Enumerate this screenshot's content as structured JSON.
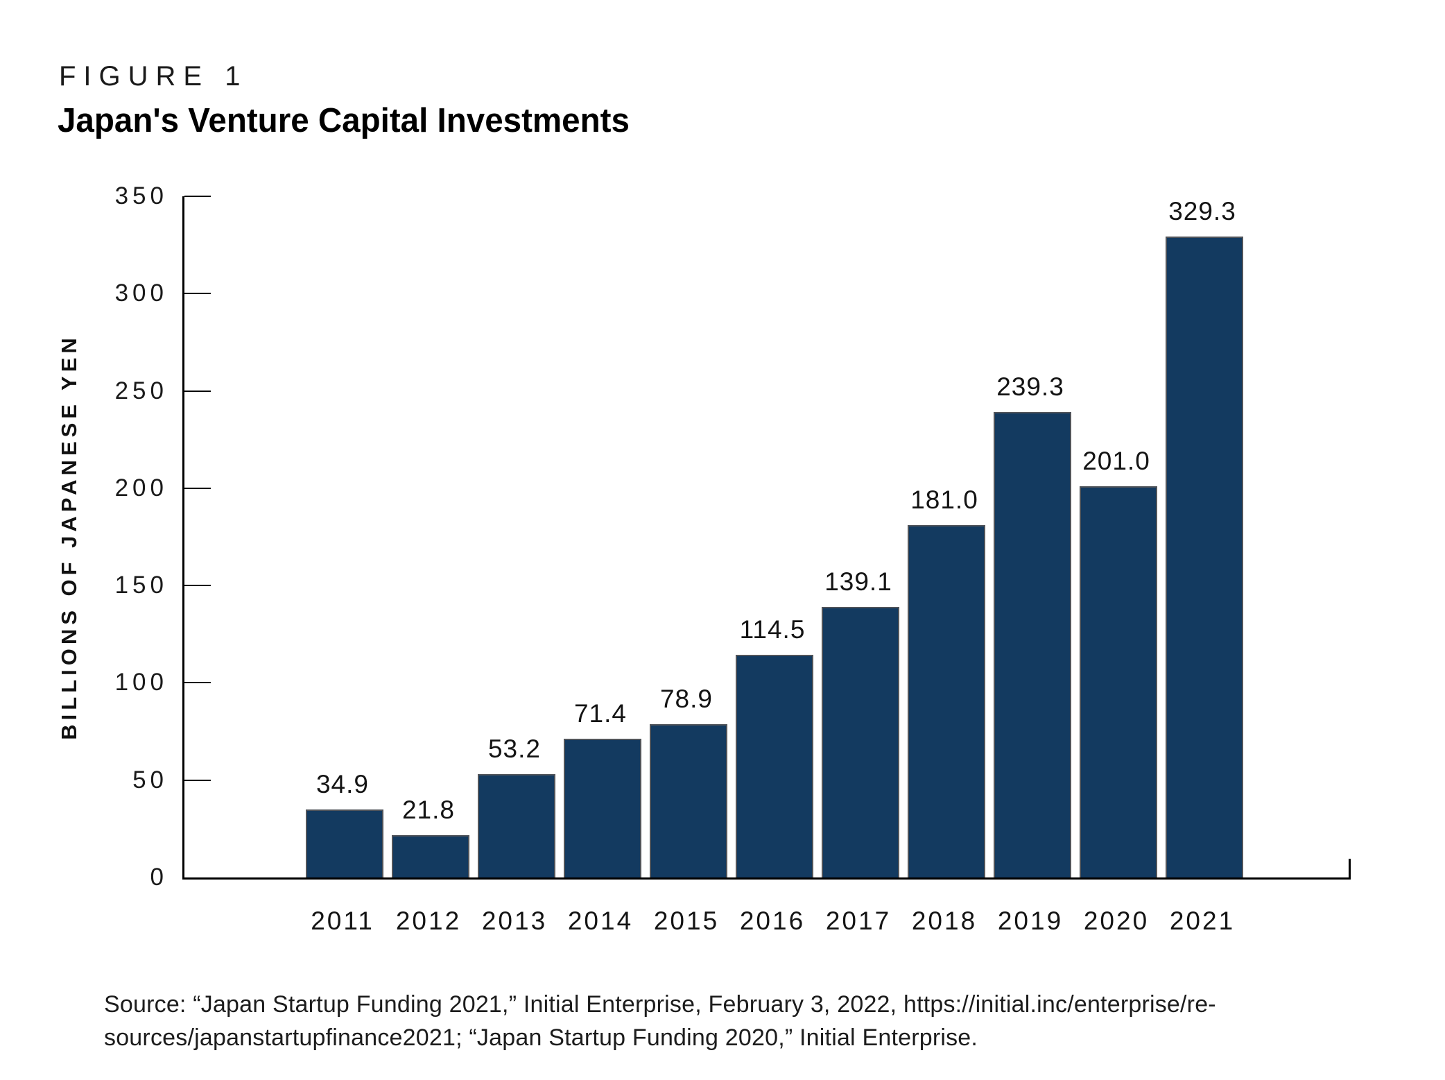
{
  "figure": {
    "label": "FIGURE 1",
    "title": "Japan's Venture Capital Investments"
  },
  "chart_data": {
    "type": "bar",
    "title": "Japan's Venture Capital Investments",
    "categories": [
      "2011",
      "2012",
      "2013",
      "2014",
      "2015",
      "2016",
      "2017",
      "2018",
      "2019",
      "2020",
      "2021"
    ],
    "values": [
      34.9,
      21.8,
      53.2,
      71.4,
      78.9,
      114.5,
      139.1,
      181.0,
      239.3,
      201.0,
      329.3
    ],
    "value_labels": [
      "34.9",
      "21.8",
      "53.2",
      "71.4",
      "78.9",
      "114.5",
      "139.1",
      "181.0",
      "239.3",
      "201.0",
      "329.3"
    ],
    "xlabel": "",
    "ylabel": "BILLIONS OF JAPANESE YEN",
    "ylim": [
      0,
      350
    ],
    "yticks": [
      0,
      50,
      100,
      150,
      200,
      250,
      300,
      350
    ],
    "grid": false,
    "legend": "none",
    "bar_color": "#133a60",
    "bar_border_color": "#50545a",
    "axis_color": "#000000"
  },
  "source": {
    "lines": [
      "Source: “Japan Startup Funding 2021,” Initial Enterprise, February 3, 2022, https://initial.inc/enterprise/re-",
      "sources/japanstartupfinance2021; “Japan Startup Funding 2020,” Initial Enterprise."
    ]
  }
}
